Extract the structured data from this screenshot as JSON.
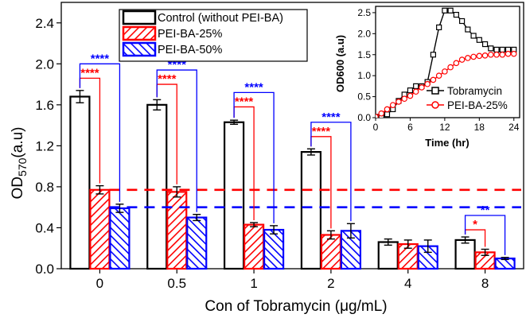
{
  "chart_data": [
    {
      "type": "bar",
      "title": "",
      "xlabel": "Con of Tobramycin (μg/mL)",
      "ylabel_main": "OD",
      "ylabel_sub": "570",
      "ylabel_suffix": "(a.u)",
      "ylim": [
        0,
        2.6
      ],
      "yticks": [
        "0.0",
        "0.4",
        "0.8",
        "1.2",
        "1.6",
        "2.0",
        "2.4"
      ],
      "categories": [
        "0",
        "0.5",
        "1",
        "2",
        "4",
        "8"
      ],
      "series": [
        {
          "name": "Control (without PEI-BA)",
          "color": "#000000",
          "fill": "none",
          "values": [
            1.68,
            1.6,
            1.43,
            1.14,
            0.26,
            0.28
          ],
          "errors": [
            0.06,
            0.05,
            0.02,
            0.03,
            0.03,
            0.03
          ]
        },
        {
          "name": "PEI-BA-25%",
          "color": "#ff0000",
          "fill": "hatch",
          "values": [
            0.77,
            0.75,
            0.43,
            0.33,
            0.24,
            0.16
          ],
          "errors": [
            0.04,
            0.05,
            0.02,
            0.04,
            0.04,
            0.03
          ]
        },
        {
          "name": "PEI-BA-50%",
          "color": "#0000ff",
          "fill": "hatch",
          "values": [
            0.59,
            0.5,
            0.38,
            0.37,
            0.22,
            0.1
          ],
          "errors": [
            0.04,
            0.03,
            0.04,
            0.07,
            0.06,
            0.01
          ]
        }
      ],
      "reference_lines": [
        {
          "series": "PEI-BA-25%",
          "value": 0.77,
          "color": "#ff0000",
          "style": "dashed"
        },
        {
          "series": "PEI-BA-50%",
          "value": 0.6,
          "color": "#0000ff",
          "style": "dashed"
        }
      ],
      "significance": [
        {
          "category": "0",
          "compare": "PEI-BA-25%",
          "label": "****",
          "color": "#ff0000",
          "level": 1.86
        },
        {
          "category": "0",
          "compare": "PEI-BA-50%",
          "label": "****",
          "color": "#0000ff",
          "level": 2.0
        },
        {
          "category": "0.5",
          "compare": "PEI-BA-25%",
          "label": "****",
          "color": "#ff0000",
          "level": 1.8
        },
        {
          "category": "0.5",
          "compare": "PEI-BA-50%",
          "label": "****",
          "color": "#0000ff",
          "level": 1.94
        },
        {
          "category": "1",
          "compare": "PEI-BA-25%",
          "label": "****",
          "color": "#ff0000",
          "level": 1.58
        },
        {
          "category": "1",
          "compare": "PEI-BA-50%",
          "label": "****",
          "color": "#0000ff",
          "level": 1.72
        },
        {
          "category": "2",
          "compare": "PEI-BA-25%",
          "label": "****",
          "color": "#ff0000",
          "level": 1.29
        },
        {
          "category": "2",
          "compare": "PEI-BA-50%",
          "label": "****",
          "color": "#0000ff",
          "level": 1.43
        },
        {
          "category": "8",
          "compare": "PEI-BA-25%",
          "label": "*",
          "color": "#ff0000",
          "level": 0.38
        },
        {
          "category": "8",
          "compare": "PEI-BA-50%",
          "label": "**",
          "color": "#0000ff",
          "level": 0.52
        }
      ],
      "legend_position": "top-left"
    },
    {
      "type": "line",
      "xlabel": "Time (hr)",
      "ylabel": "OD600 (a.u)",
      "xlim": [
        0,
        25
      ],
      "ylim": [
        0,
        2.65
      ],
      "xticks": [
        "0",
        "6",
        "12",
        "18",
        "24"
      ],
      "yticks": [
        "0.0",
        "0.5",
        "1.0",
        "1.5",
        "2.0",
        "2.5"
      ],
      "legend_position": "bottom-right",
      "series": [
        {
          "name": "Tobramycin",
          "color": "#000000",
          "marker": "square",
          "x": [
            0,
            1,
            2,
            3,
            4,
            5,
            6,
            7,
            8,
            9,
            10,
            11,
            12,
            13,
            14,
            15,
            16,
            17,
            18,
            19,
            20,
            21,
            22,
            23,
            24
          ],
          "y": [
            0.02,
            0.04,
            0.08,
            0.2,
            0.4,
            0.55,
            0.65,
            0.75,
            0.75,
            0.85,
            1.5,
            2.15,
            2.55,
            2.55,
            2.45,
            2.3,
            2.1,
            1.95,
            1.85,
            1.75,
            1.65,
            1.62,
            1.62,
            1.62,
            1.62
          ]
        },
        {
          "name": "PEI-BA-25%",
          "color": "#ff0000",
          "marker": "circle",
          "x": [
            0,
            1,
            2,
            3,
            4,
            5,
            6,
            7,
            8,
            9,
            10,
            11,
            12,
            13,
            14,
            15,
            16,
            17,
            18,
            19,
            20,
            21,
            22,
            23,
            24
          ],
          "y": [
            0.02,
            0.1,
            0.2,
            0.3,
            0.38,
            0.45,
            0.52,
            0.62,
            0.72,
            0.8,
            0.9,
            1.0,
            1.1,
            1.2,
            1.3,
            1.38,
            1.42,
            1.45,
            1.47,
            1.48,
            1.5,
            1.5,
            1.5,
            1.52,
            1.52
          ]
        }
      ]
    }
  ]
}
